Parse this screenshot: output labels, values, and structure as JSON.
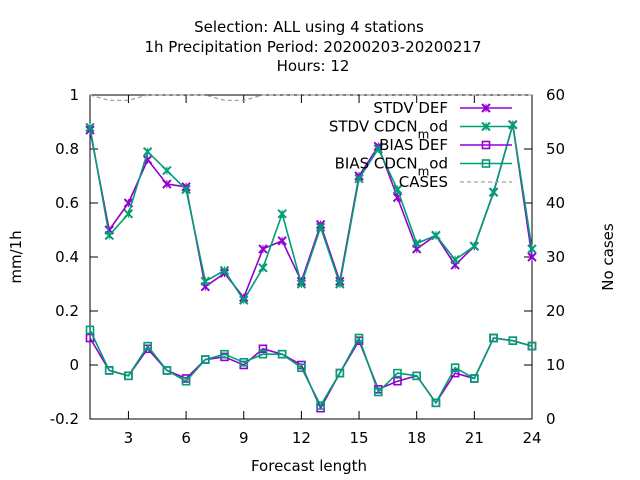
{
  "chart_data": {
    "type": "line",
    "title_lines": [
      "Selection: ALL using     4 stations",
      "1h Precipitation   Period: 20200203-20200217",
      "Hours:  12"
    ],
    "xlabel": "Forecast length",
    "ylabel": "mm/1h",
    "y2label": "No cases",
    "xlim": [
      1,
      24
    ],
    "ylim": [
      -0.2,
      1.0
    ],
    "y2lim": [
      0,
      60
    ],
    "xticks": [
      3,
      6,
      9,
      12,
      15,
      18,
      21,
      24
    ],
    "yticks": [
      -0.2,
      0,
      0.2,
      0.4,
      0.6,
      0.8,
      1
    ],
    "ytick_labels": [
      "-0.2",
      "0",
      "0.2",
      "0.4",
      "0.6",
      "0.8",
      "1"
    ],
    "y2ticks": [
      0,
      10,
      20,
      30,
      40,
      50,
      60
    ],
    "grid": false,
    "legend_position": "top-right",
    "x": [
      1,
      2,
      3,
      4,
      5,
      6,
      7,
      8,
      9,
      10,
      11,
      12,
      13,
      14,
      15,
      16,
      17,
      18,
      19,
      20,
      21,
      22,
      23,
      24
    ],
    "series": [
      {
        "name": "STDV DEF",
        "color": "#9400d3",
        "marker": "x",
        "axis": "y1",
        "values": [
          0.87,
          0.5,
          0.6,
          0.76,
          0.67,
          0.66,
          0.29,
          0.34,
          0.25,
          0.43,
          0.46,
          0.31,
          0.52,
          0.31,
          0.7,
          0.81,
          0.62,
          0.43,
          0.48,
          0.37,
          0.44,
          0.64,
          0.89,
          0.4
        ]
      },
      {
        "name": "STDV CDCN_mod",
        "color": "#009e73",
        "marker": "x",
        "axis": "y1",
        "values": [
          0.88,
          0.48,
          0.56,
          0.79,
          0.72,
          0.65,
          0.31,
          0.35,
          0.24,
          0.36,
          0.56,
          0.3,
          0.51,
          0.3,
          0.69,
          0.8,
          0.65,
          0.45,
          0.48,
          0.39,
          0.44,
          0.64,
          0.89,
          0.43
        ]
      },
      {
        "name": "BIAS DEF",
        "color": "#9400d3",
        "marker": "square",
        "axis": "y1",
        "values": [
          0.1,
          -0.02,
          -0.04,
          0.06,
          -0.02,
          -0.05,
          0.02,
          0.03,
          0.0,
          0.06,
          0.04,
          0.0,
          -0.16,
          -0.03,
          0.09,
          -0.09,
          -0.06,
          -0.04,
          -0.14,
          -0.03,
          -0.05,
          0.1,
          0.09,
          0.07
        ]
      },
      {
        "name": "BIAS CDCN_mod",
        "color": "#009e73",
        "marker": "square",
        "axis": "y1",
        "values": [
          0.13,
          -0.02,
          -0.04,
          0.07,
          -0.02,
          -0.06,
          0.02,
          0.04,
          0.01,
          0.04,
          0.04,
          -0.01,
          -0.15,
          -0.03,
          0.1,
          -0.1,
          -0.03,
          -0.04,
          -0.14,
          -0.01,
          -0.05,
          0.1,
          0.09,
          0.07
        ]
      },
      {
        "name": "CASES",
        "color": "#a0a0a0",
        "marker": "none",
        "dash": true,
        "axis": "y2",
        "values": [
          60,
          59,
          59,
          60,
          60,
          60,
          60,
          59,
          59,
          60,
          60,
          60,
          60,
          60,
          60,
          60,
          60,
          60,
          60,
          60,
          60,
          60,
          60,
          60
        ]
      }
    ]
  }
}
